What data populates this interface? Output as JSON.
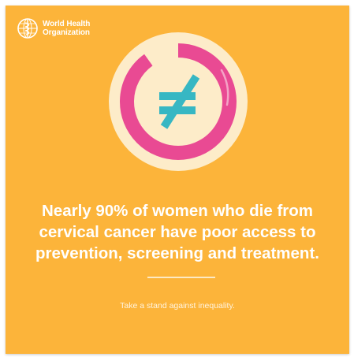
{
  "logo": {
    "icon": "who-emblem-icon",
    "line1": "World Health",
    "line2": "Organization"
  },
  "emblem": {
    "icon": "not-equal-ring-icon",
    "colors": {
      "background": "#fcb43a",
      "circle": "#fdecc9",
      "ring": "#e94a93",
      "symbol": "#37b7c3"
    },
    "ring_fill_fraction": 0.9
  },
  "headline": {
    "line1": "Nearly 90% of women who die from",
    "line2": "cervical cancer have poor access to",
    "line3": "prevention, screening and treatment."
  },
  "tagline": "Take a stand against inequality."
}
